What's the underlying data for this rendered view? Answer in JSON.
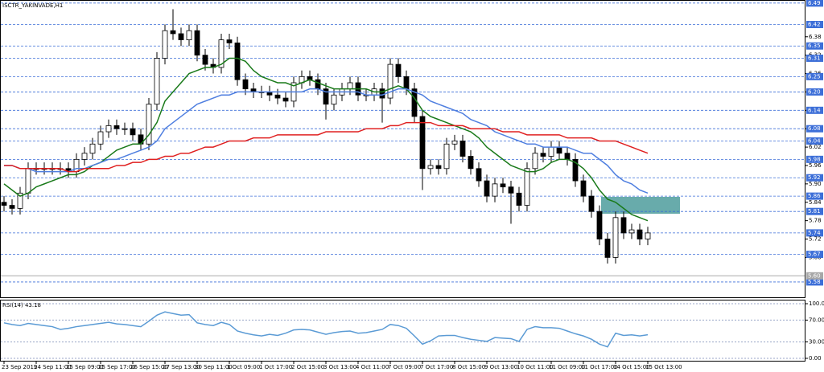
{
  "chart_data": [
    {
      "type": "candlestick",
      "title": "ISCTR_YAKINVADE,H1",
      "categories": [
        "23 Sep 2019",
        null,
        null,
        null,
        "24 Sep 11:00",
        null,
        null,
        null,
        "25 Sep 09:00",
        null,
        null,
        null,
        "25 Sep 17:00",
        null,
        null,
        null,
        "26 Sep 15:00",
        null,
        null,
        null,
        "27 Sep 13:00",
        null,
        null,
        null,
        "30 Sep 11:00",
        null,
        null,
        null,
        "1 Oct 09:00",
        null,
        null,
        null,
        "1 Oct 17:00",
        null,
        null,
        null,
        "2 Oct 15:00",
        null,
        null,
        null,
        "3 Oct 13:00",
        null,
        null,
        null,
        "4 Oct 11:00",
        null,
        null,
        null,
        "7 Oct 09:00",
        null,
        null,
        null,
        "7 Oct 17:00",
        null,
        null,
        null,
        "8 Oct 15:00",
        null,
        null,
        null,
        "9 Oct 13:00",
        null,
        null,
        null,
        "10 Oct 11:00",
        null,
        null,
        null,
        "11 Oct 09:00",
        null,
        null,
        null,
        "11 Oct 17:00",
        null,
        null,
        null,
        "14 Oct 15:00",
        null,
        null,
        null,
        "15 Oct 13:00"
      ],
      "open": [
        5.84,
        5.83,
        5.82,
        5.87,
        5.95,
        5.95,
        5.95,
        5.95,
        5.95,
        5.94,
        5.98,
        6.0,
        6.03,
        6.07,
        6.09,
        6.08,
        6.08,
        6.06,
        6.03,
        6.16,
        6.31,
        6.4,
        6.39,
        6.37,
        6.4,
        6.32,
        6.29,
        6.28,
        6.37,
        6.36,
        6.24,
        6.21,
        6.2,
        6.2,
        6.19,
        6.18,
        6.17,
        6.23,
        6.25,
        6.24,
        6.21,
        6.16,
        6.19,
        6.21,
        6.23,
        6.19,
        6.19,
        6.21,
        6.18,
        6.29,
        6.25,
        6.21,
        6.12,
        5.95,
        5.96,
        5.95,
        6.03,
        6.04,
        5.99,
        5.95,
        5.91,
        5.86,
        5.9,
        5.89,
        5.87,
        5.83,
        5.95,
        6.0,
        5.99,
        6.02,
        6.0,
        5.98,
        5.91,
        5.86,
        5.81,
        5.72,
        5.66,
        5.79,
        5.74,
        5.75,
        5.72
      ],
      "high": [
        5.86,
        5.85,
        5.89,
        5.97,
        5.97,
        5.97,
        5.97,
        5.97,
        5.97,
        6.0,
        6.02,
        6.05,
        6.09,
        6.11,
        6.11,
        6.1,
        6.1,
        6.08,
        6.18,
        6.33,
        6.42,
        6.47,
        6.41,
        6.42,
        6.42,
        6.34,
        6.31,
        6.39,
        6.39,
        6.38,
        6.26,
        6.23,
        6.22,
        6.22,
        6.21,
        6.2,
        6.25,
        6.27,
        6.27,
        6.26,
        6.23,
        6.21,
        6.23,
        6.25,
        6.25,
        6.21,
        6.23,
        6.23,
        6.31,
        6.31,
        6.27,
        6.23,
        6.14,
        5.98,
        5.98,
        6.05,
        6.06,
        6.06,
        6.01,
        5.97,
        5.93,
        5.92,
        5.92,
        5.91,
        5.89,
        5.97,
        6.02,
        6.02,
        6.04,
        6.04,
        6.02,
        6.0,
        5.93,
        5.88,
        5.83,
        5.74,
        5.81,
        5.81,
        5.77,
        5.77,
        5.76
      ],
      "low": [
        5.81,
        5.8,
        5.8,
        5.85,
        5.93,
        5.93,
        5.93,
        5.93,
        5.92,
        5.92,
        5.96,
        5.98,
        6.01,
        6.05,
        6.06,
        6.06,
        6.04,
        6.01,
        6.01,
        6.14,
        6.29,
        6.37,
        6.35,
        6.35,
        6.3,
        6.27,
        6.26,
        6.26,
        6.34,
        6.22,
        6.19,
        6.18,
        6.18,
        6.17,
        6.16,
        6.15,
        6.15,
        6.21,
        6.22,
        6.19,
        6.11,
        6.14,
        6.17,
        6.19,
        6.17,
        6.17,
        6.17,
        6.1,
        6.16,
        6.23,
        6.19,
        6.1,
        5.88,
        5.93,
        5.93,
        5.93,
        6.01,
        5.97,
        5.93,
        5.89,
        5.84,
        5.84,
        5.87,
        5.77,
        5.81,
        5.81,
        5.93,
        5.97,
        5.97,
        5.98,
        5.96,
        5.89,
        5.84,
        5.79,
        5.7,
        5.64,
        5.64,
        5.72,
        5.72,
        5.7,
        5.7
      ],
      "close": [
        5.83,
        5.82,
        5.87,
        5.95,
        5.95,
        5.95,
        5.95,
        5.95,
        5.94,
        5.98,
        6.0,
        6.03,
        6.07,
        6.09,
        6.08,
        6.08,
        6.06,
        6.03,
        6.16,
        6.31,
        6.4,
        6.39,
        6.37,
        6.4,
        6.32,
        6.29,
        6.28,
        6.37,
        6.36,
        6.24,
        6.21,
        6.2,
        6.2,
        6.19,
        6.18,
        6.17,
        6.23,
        6.25,
        6.24,
        6.21,
        6.16,
        6.19,
        6.21,
        6.23,
        6.19,
        6.19,
        6.21,
        6.18,
        6.29,
        6.25,
        6.21,
        6.12,
        5.95,
        5.96,
        5.95,
        6.03,
        6.04,
        5.99,
        5.95,
        5.91,
        5.86,
        5.9,
        5.89,
        5.87,
        5.83,
        5.95,
        6.0,
        5.99,
        6.02,
        6.0,
        5.98,
        5.91,
        5.86,
        5.81,
        5.72,
        5.66,
        5.79,
        5.74,
        5.75,
        5.72,
        5.74
      ],
      "up_color": "#ffffff",
      "down_color": "#000000",
      "series": [
        {
          "color": "#1a7a1a",
          "values": [
            5.9,
            5.88,
            5.86,
            5.87,
            5.89,
            5.9,
            5.91,
            5.92,
            5.93,
            5.93,
            5.94,
            5.96,
            5.97,
            5.99,
            6.01,
            6.02,
            6.03,
            6.03,
            6.06,
            6.1,
            6.17,
            6.2,
            6.23,
            6.26,
            6.27,
            6.28,
            6.28,
            6.29,
            6.31,
            6.31,
            6.3,
            6.27,
            6.25,
            6.24,
            6.23,
            6.23,
            6.22,
            6.23,
            6.24,
            6.23,
            6.22,
            6.21,
            6.21,
            6.21,
            6.21,
            6.21,
            6.2,
            6.2,
            6.21,
            6.22,
            6.21,
            6.18,
            6.14,
            6.12,
            6.11,
            6.1,
            6.09,
            6.08,
            6.07,
            6.05,
            6.02,
            6.0,
            5.98,
            5.96,
            5.95,
            5.94,
            5.94,
            5.95,
            5.97,
            5.98,
            5.98,
            5.97,
            5.95,
            5.92,
            5.88,
            5.85,
            5.84,
            5.82,
            5.8,
            5.79,
            5.78
          ]
        },
        {
          "color": "#4f7fe0",
          "values": [
            5.96,
            5.96,
            5.95,
            5.95,
            5.94,
            5.94,
            5.94,
            5.94,
            5.94,
            5.95,
            5.95,
            5.96,
            5.97,
            5.98,
            5.98,
            5.99,
            6.0,
            6.01,
            6.02,
            6.04,
            6.08,
            6.1,
            6.12,
            6.14,
            6.16,
            6.17,
            6.18,
            6.19,
            6.19,
            6.2,
            6.2,
            6.2,
            6.2,
            6.2,
            6.2,
            6.2,
            6.2,
            6.2,
            6.21,
            6.21,
            6.2,
            6.2,
            6.2,
            6.2,
            6.2,
            6.19,
            6.19,
            6.19,
            6.2,
            6.21,
            6.21,
            6.2,
            6.19,
            6.17,
            6.16,
            6.15,
            6.14,
            6.13,
            6.11,
            6.1,
            6.09,
            6.07,
            6.06,
            6.05,
            6.04,
            6.03,
            6.03,
            6.02,
            6.02,
            6.02,
            6.02,
            6.01,
            6.0,
            6.0,
            5.98,
            5.96,
            5.93,
            5.91,
            5.9,
            5.88,
            5.87
          ]
        },
        {
          "color": "#e02020",
          "values": [
            5.96,
            5.96,
            5.95,
            5.95,
            5.95,
            5.95,
            5.95,
            5.95,
            5.94,
            5.94,
            5.95,
            5.95,
            5.95,
            5.95,
            5.96,
            5.96,
            5.97,
            5.97,
            5.98,
            5.98,
            5.99,
            5.99,
            6.0,
            6.0,
            6.01,
            6.02,
            6.02,
            6.03,
            6.04,
            6.04,
            6.04,
            6.05,
            6.05,
            6.05,
            6.06,
            6.06,
            6.06,
            6.06,
            6.06,
            6.06,
            6.07,
            6.07,
            6.07,
            6.07,
            6.07,
            6.08,
            6.08,
            6.08,
            6.09,
            6.09,
            6.1,
            6.1,
            6.1,
            6.1,
            6.09,
            6.09,
            6.09,
            6.09,
            6.08,
            6.08,
            6.08,
            6.08,
            6.07,
            6.07,
            6.07,
            6.06,
            6.06,
            6.06,
            6.06,
            6.06,
            6.05,
            6.05,
            6.05,
            6.05,
            6.04,
            6.04,
            6.04,
            6.03,
            6.02,
            6.01,
            6.0
          ]
        }
      ],
      "ylim": [
        5.53,
        6.5
      ],
      "yticks": [
        6.38,
        6.32,
        6.26,
        {
          "value": 6.2,
          "label": "6.20"
        },
        6.14,
        6.08,
        6.02,
        5.96,
        {
          "value": 5.9,
          "label": "5.90"
        },
        5.84,
        5.78,
        5.72,
        5.66
      ],
      "levels": [
        6.49,
        6.42,
        6.35,
        6.31,
        6.25,
        {
          "value": 6.2,
          "label": "6.20"
        },
        6.14,
        6.08,
        6.04,
        5.98,
        5.92,
        5.86,
        5.81,
        5.74,
        5.67,
        5.58
      ],
      "level_color": "#3d6fd8",
      "marker_line": {
        "value": 5.6,
        "label": "5.60",
        "color": "#a8a8a8"
      }
    },
    {
      "type": "line",
      "title": "RSI(14) 43.18",
      "series": [
        {
          "color": "#5b9bd5",
          "values": [
            65,
            62,
            60,
            64,
            62,
            60,
            58,
            53,
            55,
            58,
            60,
            62,
            64,
            66,
            63,
            62,
            60,
            58,
            68,
            79,
            85,
            82,
            79,
            80,
            65,
            62,
            60,
            66,
            62,
            50,
            46,
            43,
            41,
            44,
            42,
            46,
            52,
            53,
            52,
            48,
            44,
            47,
            49,
            50,
            46,
            47,
            50,
            53,
            62,
            60,
            55,
            41,
            26,
            32,
            41,
            42,
            42,
            38,
            35,
            33,
            31,
            38,
            37,
            36,
            31,
            53,
            58,
            56,
            56,
            55,
            50,
            45,
            41,
            35,
            26,
            21,
            46,
            42,
            43,
            41,
            43.18
          ]
        }
      ],
      "ylim": [
        0,
        100
      ],
      "yticks": [
        {
          "value": 100,
          "label": "100.00"
        },
        {
          "value": 70,
          "label": "70.00"
        },
        {
          "value": 30,
          "label": "30.00"
        },
        {
          "value": 0,
          "label": "0.00"
        }
      ]
    }
  ]
}
